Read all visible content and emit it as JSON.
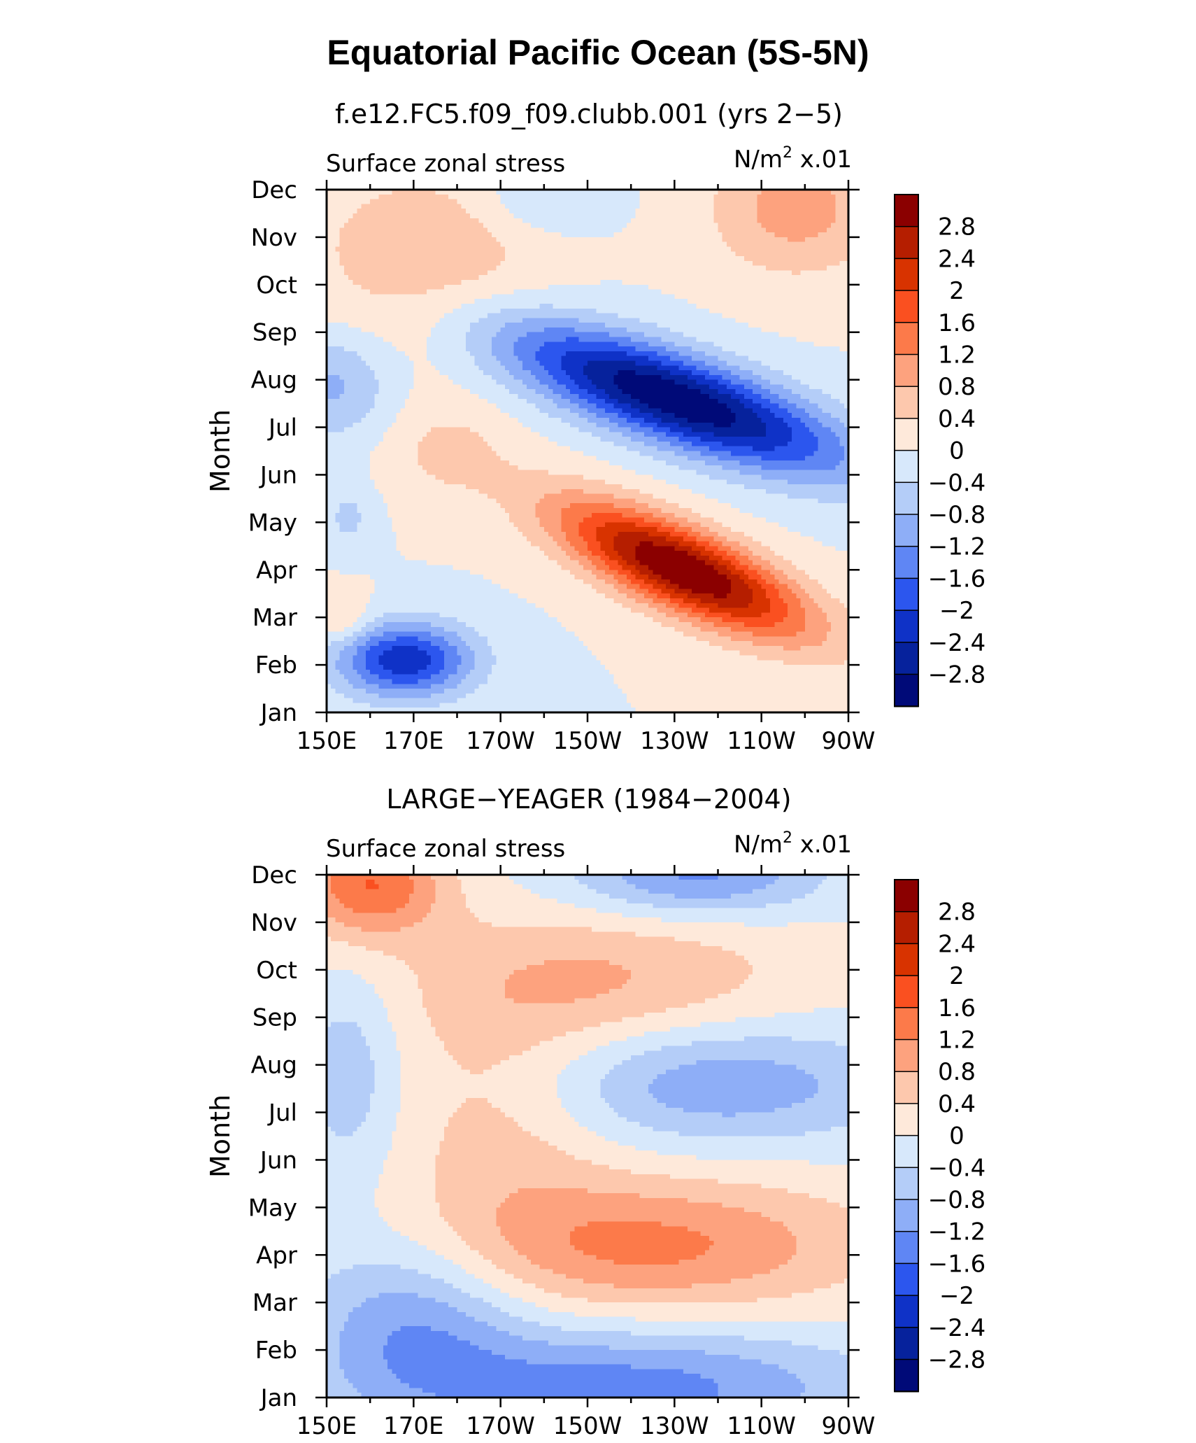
{
  "figure": {
    "title": "Equatorial Pacific Ocean (5S-5N)"
  },
  "colorbar": {
    "tick_labels": [
      "2.8",
      "2.4",
      "2",
      "1.6",
      "1.2",
      "0.8",
      "0.4",
      "0",
      "−0.4",
      "−0.8",
      "−1.2",
      "−1.6",
      "−2",
      "−2.4",
      "−2.8"
    ],
    "levels": [
      2.8,
      2.4,
      2.0,
      1.6,
      1.2,
      0.8,
      0.4,
      0,
      -0.4,
      -0.8,
      -1.2,
      -1.6,
      -2.0,
      -2.4,
      -2.8
    ],
    "colors_top_to_bottom": [
      "#8b0000",
      "#b51e00",
      "#d83300",
      "#fa5020",
      "#fc7a4a",
      "#fda27e",
      "#fdc8ad",
      "#fee9da",
      "#d7e8fb",
      "#b4cdf8",
      "#8eaef7",
      "#5f86f4",
      "#2c56ee",
      "#0f32c7",
      "#06229c",
      "#000a78"
    ]
  },
  "chart_data": [
    {
      "type": "heatmap",
      "subtitle": "f.e12.FC5.f09_f09.clubb.001 (yrs 2−5)",
      "left_label": "Surface zonal stress",
      "right_label_main": "N/m",
      "right_label_sup": "2",
      "right_label_scale": " x.01",
      "ylabel": "Month",
      "xlabel": "",
      "x_tick_labels": [
        "150E",
        "170E",
        "170W",
        "150W",
        "130W",
        "110W",
        "90W"
      ],
      "x_ticks_deg": [
        150,
        170,
        190,
        210,
        230,
        250,
        270
      ],
      "xlim": [
        150,
        270
      ],
      "y_tick_labels": [
        "Jan",
        "Feb",
        "Mar",
        "Apr",
        "May",
        "Jun",
        "Jul",
        "Aug",
        "Sep",
        "Oct",
        "Nov",
        "Dec"
      ],
      "ylim": [
        1,
        12
      ],
      "units": "N/m2 x.01",
      "anomaly_features": [
        {
          "lon": 232,
          "month": 4.0,
          "amp": 3.3,
          "slon": 20,
          "smonth": 0.65,
          "tilt": -0.037
        },
        {
          "lon": 230,
          "month": 7.6,
          "amp": -3.2,
          "slon": 28,
          "smonth": 0.7,
          "tilt": -0.03
        },
        {
          "lon": 168,
          "month": 2.1,
          "amp": -2.3,
          "slon": 11,
          "smonth": 0.55,
          "tilt": 0
        },
        {
          "lon": 152,
          "month": 7.9,
          "amp": -0.9,
          "slon": 9,
          "smonth": 0.8,
          "tilt": 0
        },
        {
          "lon": 172,
          "month": 10.5,
          "amp": 0.8,
          "slon": 18,
          "smonth": 1.3,
          "tilt": 0
        },
        {
          "lon": 258,
          "month": 11.6,
          "amp": 1.0,
          "slon": 14,
          "smonth": 1.0,
          "tilt": 0
        },
        {
          "lon": 200,
          "month": 11.8,
          "amp": -0.5,
          "slon": 10,
          "smonth": 0.5,
          "tilt": 0
        },
        {
          "lon": 154,
          "month": 3.0,
          "amp": 0.6,
          "slon": 4,
          "smonth": 0.4,
          "tilt": 0
        },
        {
          "lon": 178,
          "month": 6.5,
          "amp": 0.5,
          "slon": 10,
          "smonth": 0.7,
          "tilt": 0
        },
        {
          "lon": 155,
          "month": 5.1,
          "amp": -0.5,
          "slon": 4,
          "smonth": 0.5,
          "tilt": 0
        }
      ]
    },
    {
      "type": "heatmap",
      "subtitle": "LARGE−YEAGER (1984−2004)",
      "left_label": "Surface zonal stress",
      "right_label_main": "N/m",
      "right_label_sup": "2",
      "right_label_scale": " x.01",
      "ylabel": "Month",
      "xlabel": "",
      "x_tick_labels": [
        "150E",
        "170E",
        "170W",
        "150W",
        "130W",
        "110W",
        "90W"
      ],
      "x_ticks_deg": [
        150,
        170,
        190,
        210,
        230,
        250,
        270
      ],
      "xlim": [
        150,
        270
      ],
      "y_tick_labels": [
        "Jan",
        "Feb",
        "Mar",
        "Apr",
        "May",
        "Jun",
        "Jul",
        "Aug",
        "Sep",
        "Oct",
        "Nov",
        "Dec"
      ],
      "ylim": [
        1,
        12
      ],
      "units": "N/m2 x.01",
      "anomaly_features": [
        {
          "lon": 160,
          "month": 11.8,
          "amp": 1.6,
          "slon": 12,
          "smonth": 0.8,
          "tilt": 0
        },
        {
          "lon": 225,
          "month": 4.2,
          "amp": 1.3,
          "slon": 34,
          "smonth": 1.0,
          "tilt": 0
        },
        {
          "lon": 215,
          "month": 9.8,
          "amp": 0.8,
          "slon": 30,
          "smonth": 1.0,
          "tilt": 0
        },
        {
          "lon": 220,
          "month": 1.2,
          "amp": -1.4,
          "slon": 38,
          "smonth": 0.9,
          "tilt": 0
        },
        {
          "lon": 170,
          "month": 2.6,
          "amp": -1.1,
          "slon": 18,
          "smonth": 1.3,
          "tilt": 0
        },
        {
          "lon": 235,
          "month": 12.0,
          "amp": -1.3,
          "slon": 20,
          "smonth": 0.6,
          "tilt": 0
        },
        {
          "lon": 240,
          "month": 7.6,
          "amp": -1.1,
          "slon": 30,
          "smonth": 0.9,
          "tilt": 0
        },
        {
          "lon": 155,
          "month": 7.8,
          "amp": -0.7,
          "slon": 8,
          "smonth": 1.5,
          "tilt": 0
        },
        {
          "lon": 190,
          "month": 7.0,
          "amp": 0.6,
          "slon": 18,
          "smonth": 2.0,
          "tilt": 0
        }
      ]
    }
  ]
}
